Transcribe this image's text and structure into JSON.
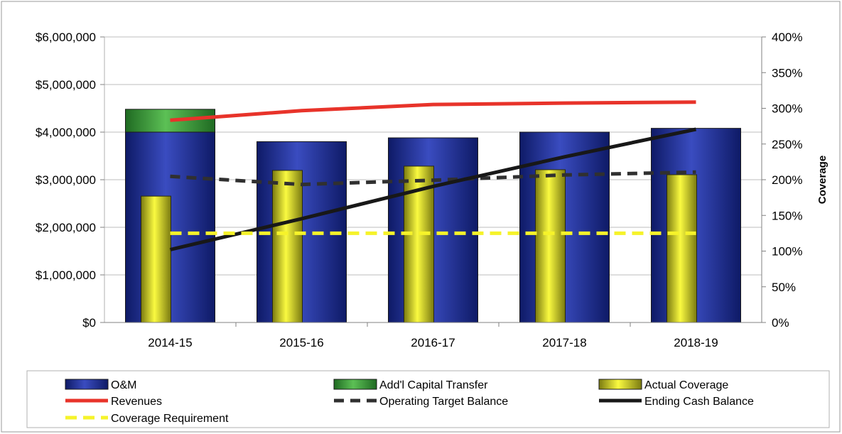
{
  "chart_data": {
    "type": "bar",
    "title": "",
    "categories": [
      "2014-15",
      "2015-16",
      "2016-17",
      "2017-18",
      "2018-19"
    ],
    "y_left": {
      "ylim": [
        0,
        6000000
      ],
      "ticks": [
        0,
        1000000,
        2000000,
        3000000,
        4000000,
        5000000,
        6000000
      ],
      "tick_labels": [
        "$0",
        "$1,000,000",
        "$2,000,000",
        "$3,000,000",
        "$4,000,000",
        "$5,000,000",
        "$6,000,000"
      ],
      "label": ""
    },
    "y_right": {
      "ylim": [
        0,
        400
      ],
      "ticks": [
        0,
        50,
        100,
        150,
        200,
        250,
        300,
        350,
        400
      ],
      "tick_labels": [
        "0%",
        "50%",
        "100%",
        "150%",
        "200%",
        "250%",
        "300%",
        "350%",
        "400%"
      ],
      "label": "Coverage"
    },
    "bar_series": [
      {
        "name": "O&M",
        "axis": "left",
        "stack": "main",
        "color": "#2a3aa0",
        "values": [
          4000000,
          3800000,
          3880000,
          4000000,
          4080000
        ]
      },
      {
        "name": "Add'l Capital Transfer",
        "axis": "left",
        "stack": "main",
        "color": "#3e9a3a",
        "values": [
          480000,
          0,
          0,
          0,
          0
        ]
      },
      {
        "name": "Actual Coverage",
        "axis": "right",
        "color": "#e8e82a",
        "values": [
          177,
          213,
          219,
          214,
          207
        ]
      }
    ],
    "line_series": [
      {
        "name": "Revenues",
        "axis": "left",
        "style": "solid",
        "color": "#e8332a",
        "values": [
          4250000,
          4450000,
          4580000,
          4610000,
          4630000
        ]
      },
      {
        "name": "Operating Target Balance",
        "axis": "left",
        "style": "dashed",
        "color": "#303030",
        "values": [
          3070000,
          2900000,
          2990000,
          3100000,
          3160000
        ]
      },
      {
        "name": "Ending Cash Balance",
        "axis": "left",
        "style": "solid",
        "color": "#181818",
        "values": [
          1530000,
          2180000,
          2860000,
          3480000,
          4060000
        ]
      },
      {
        "name": "Coverage Requirement",
        "axis": "right",
        "style": "dashed",
        "color": "#f6f32a",
        "values": [
          125,
          125,
          125,
          125,
          125
        ]
      }
    ],
    "grid": true,
    "legend_position": "bottom",
    "legend_order": [
      "O&M",
      "Add'l Capital Transfer",
      "Actual Coverage",
      "Revenues",
      "Operating Target Balance",
      "Ending Cash Balance",
      "Coverage Requirement"
    ]
  }
}
